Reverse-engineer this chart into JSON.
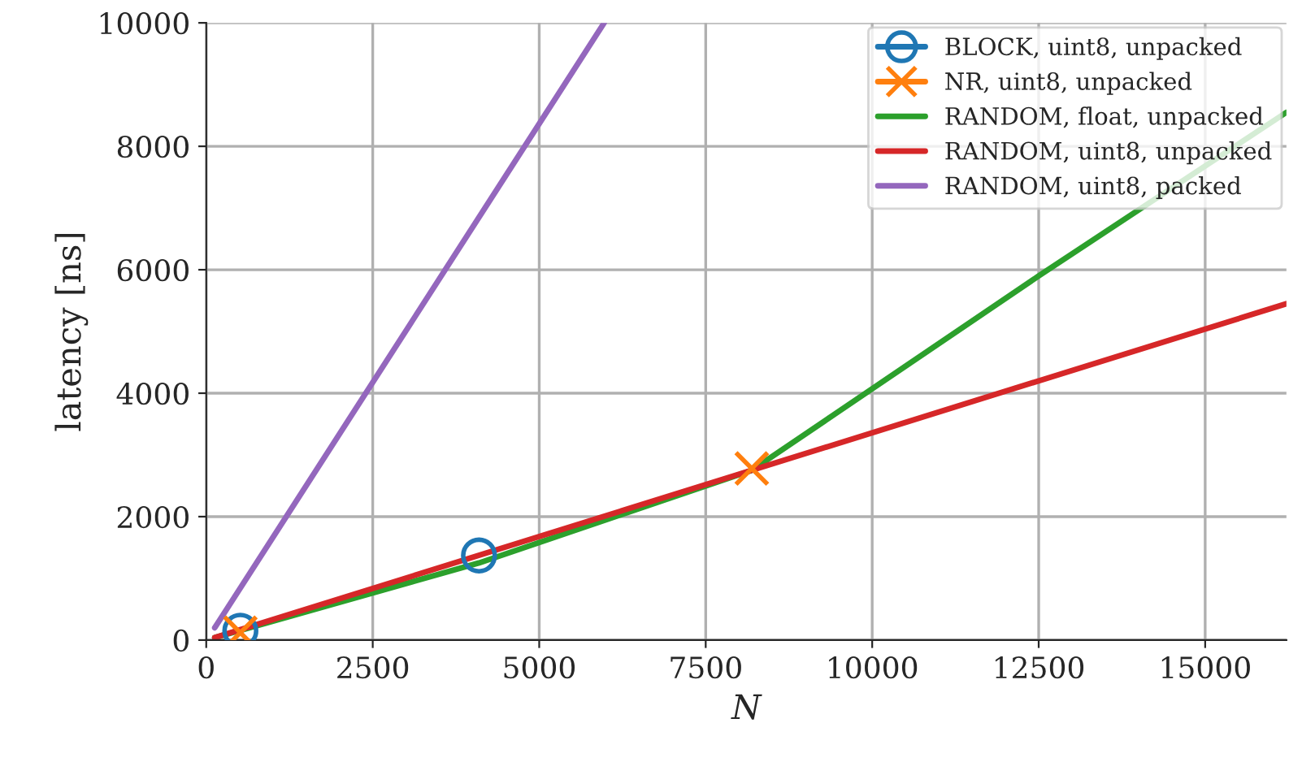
{
  "chart_data": {
    "type": "line",
    "xlabel": "N",
    "ylabel": "latency [ns]",
    "xlim": [
      0,
      16220
    ],
    "ylim": [
      0,
      10000
    ],
    "xticks": [
      0,
      2500,
      5000,
      7500,
      10000,
      12500,
      15000
    ],
    "yticks": [
      0,
      2000,
      4000,
      6000,
      8000,
      10000
    ],
    "grid": true,
    "legend": "top right",
    "series": [
      {
        "name": "BLOCK, uint8, unpacked",
        "type": "scatter",
        "color": "#1f77b4",
        "marker": "circle",
        "x": [
          512,
          4096
        ],
        "values": [
          150,
          1370
        ]
      },
      {
        "name": "NR, uint8, unpacked",
        "type": "scatter",
        "color": "#ff7f0e",
        "marker": "cross",
        "x": [
          512,
          8192
        ],
        "values": [
          120,
          2780
        ]
      },
      {
        "name": "RANDOM, float, unpacked",
        "color": "#2ca02c",
        "marker": "none",
        "x": [
          128,
          4096,
          8192,
          12500,
          16220
        ],
        "values": [
          40,
          1250,
          2750,
          5900,
          8550
        ]
      },
      {
        "name": "RANDOM, uint8, unpacked",
        "color": "#d62728",
        "marker": "none",
        "x": [
          128,
          16220
        ],
        "values": [
          40,
          5450
        ]
      },
      {
        "name": "RANDOM, uint8, packed",
        "color": "#9467bd",
        "marker": "none",
        "x": [
          128,
          5975
        ],
        "values": [
          200,
          10000
        ]
      }
    ]
  }
}
